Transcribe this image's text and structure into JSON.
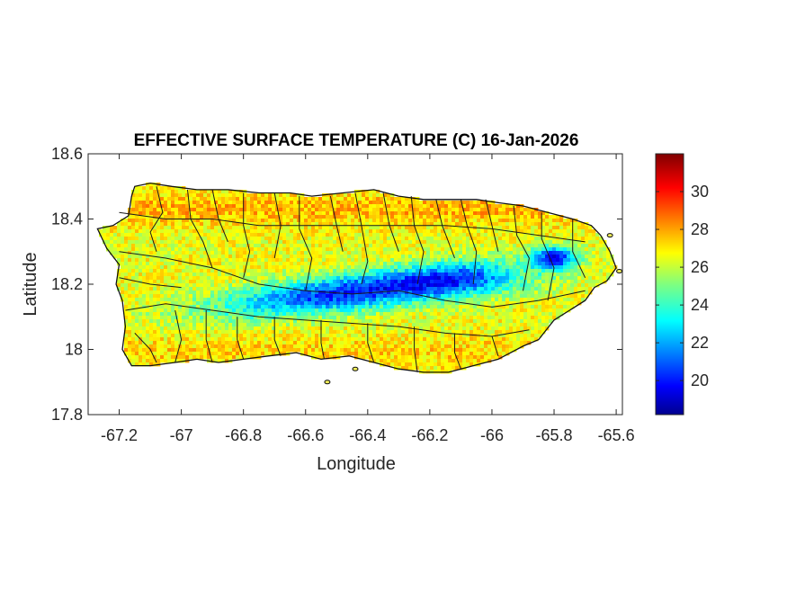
{
  "chart_data": {
    "type": "heatmap",
    "title": "EFFECTIVE SURFACE TEMPERATURE (C) 16-Jan-2026",
    "xlabel": "Longitude",
    "ylabel": "Latitude",
    "xlim": [
      -67.3,
      -65.58
    ],
    "ylim": [
      17.8,
      18.6
    ],
    "xticks": [
      -67.2,
      -67,
      -66.8,
      -66.6,
      -66.4,
      -66.2,
      -66,
      -65.8,
      -65.6
    ],
    "xtick_labels": [
      "-67.2",
      "-67",
      "-66.8",
      "-66.6",
      "-66.4",
      "-66.2",
      "-66",
      "-65.8",
      "-65.6"
    ],
    "yticks": [
      17.8,
      18,
      18.2,
      18.4,
      18.6
    ],
    "ytick_labels": [
      "17.8",
      "18",
      "18.2",
      "18.4",
      "18.6"
    ],
    "colorbar": {
      "colormap": "jet",
      "clim": [
        18.2,
        32
      ],
      "ticks": [
        20,
        22,
        24,
        26,
        28,
        30
      ],
      "tick_labels": [
        "20",
        "22",
        "24",
        "26",
        "28",
        "30"
      ]
    },
    "region": "Puerto Rico municipalities",
    "field_summary": {
      "coastal_lowlands": "25-28",
      "central_mountain_range": "19-23",
      "el_yunque_area": "20-22"
    },
    "grid": false,
    "box": true
  }
}
